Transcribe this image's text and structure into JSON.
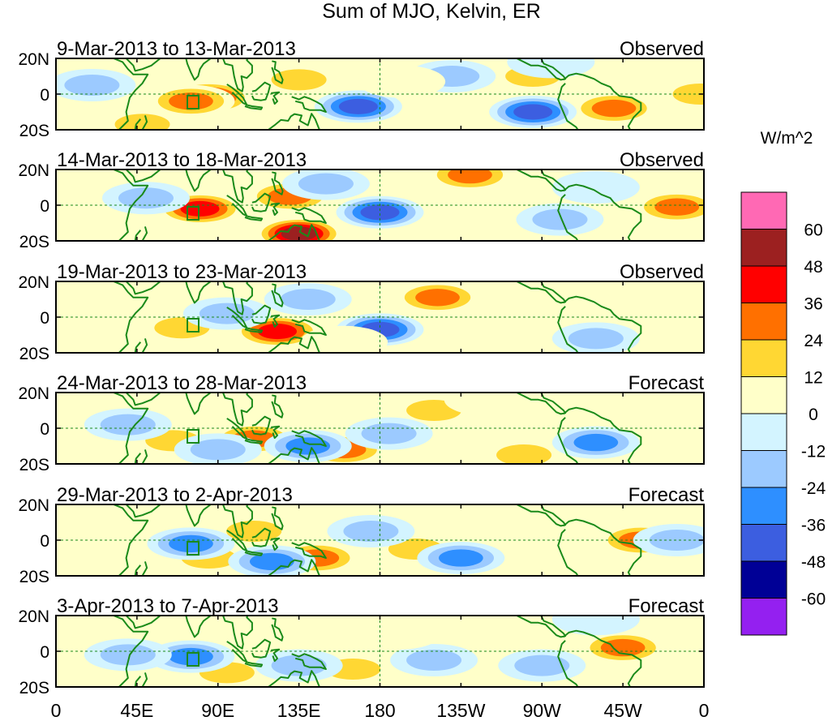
{
  "title": "Sum of MJO, Kelvin, ER",
  "colorbar": {
    "units": "W/m^2",
    "colors": [
      "#ff69b4",
      "#9c2020",
      "#ff0000",
      "#ff7000",
      "#ffd733",
      "#ffffc9",
      "#d3f4ff",
      "#9ccaff",
      "#2e8fff",
      "#3c5ee0",
      "#000096",
      "#9420f0"
    ],
    "labels": [
      "60",
      "48",
      "36",
      "24",
      "12",
      "0",
      "-12",
      "-24",
      "-36",
      "-48",
      "-60"
    ]
  },
  "axes": {
    "y_ticks": [
      "20N",
      "0",
      "20S"
    ],
    "x_ticks": [
      "0",
      "45E",
      "90E",
      "135E",
      "180",
      "135W",
      "90W",
      "45W",
      "0"
    ],
    "lon_range": [
      0,
      360
    ],
    "lat_range": [
      -20,
      20
    ]
  },
  "panels": [
    {
      "dates": "9-Mar-2013 to 13-Mar-2013",
      "kind": "Observed"
    },
    {
      "dates": "14-Mar-2013 to 18-Mar-2013",
      "kind": "Observed"
    },
    {
      "dates": "19-Mar-2013 to 23-Mar-2013",
      "kind": "Observed"
    },
    {
      "dates": "24-Mar-2013 to 28-Mar-2013",
      "kind": "Forecast"
    },
    {
      "dates": "29-Mar-2013 to 2-Apr-2013",
      "kind": "Forecast"
    },
    {
      "dates": "3-Apr-2013 to 7-Apr-2013",
      "kind": "Forecast"
    }
  ],
  "anomalies": [
    [
      {
        "lon": 85,
        "lat": -2,
        "value": 40
      },
      {
        "lon": 75,
        "lat": -4,
        "value": 26
      },
      {
        "lon": 48,
        "lat": -17,
        "value": 24
      },
      {
        "lon": 135,
        "lat": 8,
        "value": 20
      },
      {
        "lon": 245,
        "lat": 13,
        "value": 12
      },
      {
        "lon": 265,
        "lat": 10,
        "value": 14
      },
      {
        "lon": 310,
        "lat": -8,
        "value": 30
      },
      {
        "lon": 358,
        "lat": 0,
        "value": 22
      },
      {
        "lon": 168,
        "lat": -7,
        "value": -38
      },
      {
        "lon": 220,
        "lat": 10,
        "value": -24
      },
      {
        "lon": 265,
        "lat": -10,
        "value": -42
      },
      {
        "lon": 20,
        "lat": 5,
        "value": -15
      },
      {
        "lon": 275,
        "lat": 18,
        "value": -12
      },
      {
        "lon": 192,
        "lat": 7,
        "value": 10
      }
    ],
    [
      {
        "lon": 80,
        "lat": -2,
        "value": 40
      },
      {
        "lon": 135,
        "lat": -16,
        "value": 52
      },
      {
        "lon": 130,
        "lat": 5,
        "value": 26
      },
      {
        "lon": 230,
        "lat": 17,
        "value": 28
      },
      {
        "lon": 345,
        "lat": -1,
        "value": 26
      },
      {
        "lon": 180,
        "lat": 14,
        "value": 12
      },
      {
        "lon": 180,
        "lat": -4,
        "value": -38
      },
      {
        "lon": 150,
        "lat": 12,
        "value": -20
      },
      {
        "lon": 280,
        "lat": -8,
        "value": -20
      },
      {
        "lon": 50,
        "lat": 4,
        "value": -14
      },
      {
        "lon": 300,
        "lat": 10,
        "value": -12
      }
    ],
    [
      {
        "lon": 123,
        "lat": -8,
        "value": 44
      },
      {
        "lon": 212,
        "lat": 11,
        "value": 28
      },
      {
        "lon": 70,
        "lat": -6,
        "value": 14
      },
      {
        "lon": 20,
        "lat": 8,
        "value": 12
      },
      {
        "lon": 180,
        "lat": -7,
        "value": -40
      },
      {
        "lon": 95,
        "lat": 2,
        "value": -18
      },
      {
        "lon": 140,
        "lat": 10,
        "value": -14
      },
      {
        "lon": 300,
        "lat": -12,
        "value": -14
      },
      {
        "lon": 160,
        "lat": -14,
        "value": 10
      },
      {
        "lon": 260,
        "lat": 14,
        "value": 12
      }
    ],
    [
      {
        "lon": 160,
        "lat": -12,
        "value": 30
      },
      {
        "lon": 110,
        "lat": -6,
        "value": 26
      },
      {
        "lon": 65,
        "lat": -7,
        "value": 20
      },
      {
        "lon": 210,
        "lat": 10,
        "value": 14
      },
      {
        "lon": 260,
        "lat": -15,
        "value": 14
      },
      {
        "lon": 300,
        "lat": -8,
        "value": -36
      },
      {
        "lon": 140,
        "lat": -10,
        "value": -30
      },
      {
        "lon": 40,
        "lat": 2,
        "value": -20
      },
      {
        "lon": 90,
        "lat": -12,
        "value": -15
      },
      {
        "lon": 185,
        "lat": -3,
        "value": -14
      },
      {
        "lon": 240,
        "lat": 16,
        "value": 12
      }
    ],
    [
      {
        "lon": 145,
        "lat": -10,
        "value": 30
      },
      {
        "lon": 200,
        "lat": -5,
        "value": 24
      },
      {
        "lon": 325,
        "lat": 0,
        "value": 28
      },
      {
        "lon": 85,
        "lat": -10,
        "value": 22
      },
      {
        "lon": 110,
        "lat": 5,
        "value": 14
      },
      {
        "lon": 225,
        "lat": -10,
        "value": -36
      },
      {
        "lon": 75,
        "lat": -2,
        "value": -34
      },
      {
        "lon": 120,
        "lat": -12,
        "value": -30
      },
      {
        "lon": 175,
        "lat": 5,
        "value": -16
      },
      {
        "lon": 345,
        "lat": 0,
        "value": -14
      },
      {
        "lon": 290,
        "lat": 10,
        "value": 10
      }
    ],
    [
      {
        "lon": 165,
        "lat": -10,
        "value": 20
      },
      {
        "lon": 95,
        "lat": -12,
        "value": 18
      },
      {
        "lon": 315,
        "lat": 2,
        "value": 26
      },
      {
        "lon": 225,
        "lat": 8,
        "value": 12
      },
      {
        "lon": 75,
        "lat": -3,
        "value": -34
      },
      {
        "lon": 210,
        "lat": -5,
        "value": -24
      },
      {
        "lon": 135,
        "lat": -8,
        "value": -18
      },
      {
        "lon": 270,
        "lat": -8,
        "value": -14
      },
      {
        "lon": 40,
        "lat": -2,
        "value": -14
      },
      {
        "lon": 300,
        "lat": 18,
        "value": -12
      },
      {
        "lon": 190,
        "lat": 10,
        "value": 10
      }
    ]
  ]
}
